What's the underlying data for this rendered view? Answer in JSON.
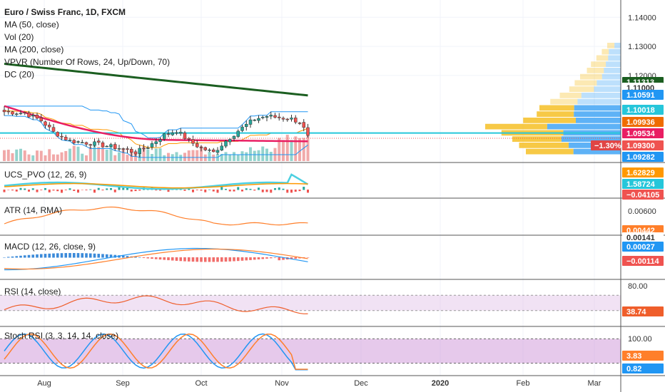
{
  "colors": {
    "up": "#26a69a",
    "down": "#ef5350",
    "ma50": "#e91e63",
    "ma200": "#1b5e20",
    "donchian": "#2196f3",
    "hline": "#26c6da",
    "axis_text": "#333333",
    "pane_sep": "#555555",
    "rsi_band": "#e1bee7",
    "stoch_band": "#ce93d8"
  },
  "chart_data": [
    {
      "type": "candlestick",
      "pane": "price",
      "legend": [
        "Euro / Swiss Franc, 1D, FXCM",
        "MA (50, close)",
        "Vol (20)",
        "MA (200, close)",
        "VPVR (Number Of Rows, 24, Up/Down, 70)",
        "DC (20)"
      ],
      "ylim": [
        1.0925,
        1.144
      ],
      "y_ticks": [
        "1.14000",
        "1.13000",
        "1.12000"
      ],
      "price_badges": [
        {
          "label": "1.11313",
          "value": 1.11313,
          "color": "#1b5e20"
        },
        {
          "label": "1.11000",
          "value": 1.11,
          "color": "#ffffff",
          "text_color": "#333333"
        },
        {
          "label": "1.10591",
          "value": 1.10591,
          "color": "#2196f3"
        },
        {
          "label": "1.10018",
          "value": 1.10018,
          "color": "#26c6da"
        },
        {
          "label": "1.09936",
          "value": 1.09936,
          "color": "#ef6c00"
        },
        {
          "label": "1.09534",
          "value": 1.09534,
          "color": "#e91e63"
        },
        {
          "label": "1.09300",
          "value": 1.093,
          "color": "#ef5350"
        },
        {
          "label": "1.09282",
          "value": 1.09282,
          "color": "#2196f3"
        }
      ],
      "change_badge": "−1.30%",
      "last_close": 1.09936,
      "hline_value": 1.10018
    },
    {
      "type": "line",
      "pane": "ucs_pvo",
      "legend": "UCS_PVO (12, 26, 9)",
      "badges": [
        "1.62829",
        "1.58724",
        "−0.04105"
      ]
    },
    {
      "type": "line",
      "pane": "atr",
      "legend": "ATR (14, RMA)",
      "y_ticks": [
        "0.00600"
      ],
      "badges": [
        "0.00442",
        "0.00141"
      ]
    },
    {
      "type": "line",
      "pane": "macd",
      "legend": "MACD (12, 26, close, 9)",
      "badges": [
        "0.00027",
        "−0.00114"
      ]
    },
    {
      "type": "line",
      "pane": "rsi",
      "legend": "RSI (14, close)",
      "y_ticks": [
        "80.00"
      ],
      "badges": [
        "38.74"
      ],
      "bands": [
        70,
        30
      ]
    },
    {
      "type": "line",
      "pane": "stoch_rsi",
      "legend": "Stoch RSI (3, 3, 14, 14, close)",
      "y_ticks": [
        "100.00"
      ],
      "badges": [
        "3.83",
        "0.82"
      ],
      "bands": [
        80,
        20
      ]
    }
  ],
  "x_axis": {
    "labels": [
      "Aug",
      "Sep",
      "Oct",
      "Nov",
      "Dec",
      "2020",
      "Feb",
      "Mar"
    ]
  }
}
